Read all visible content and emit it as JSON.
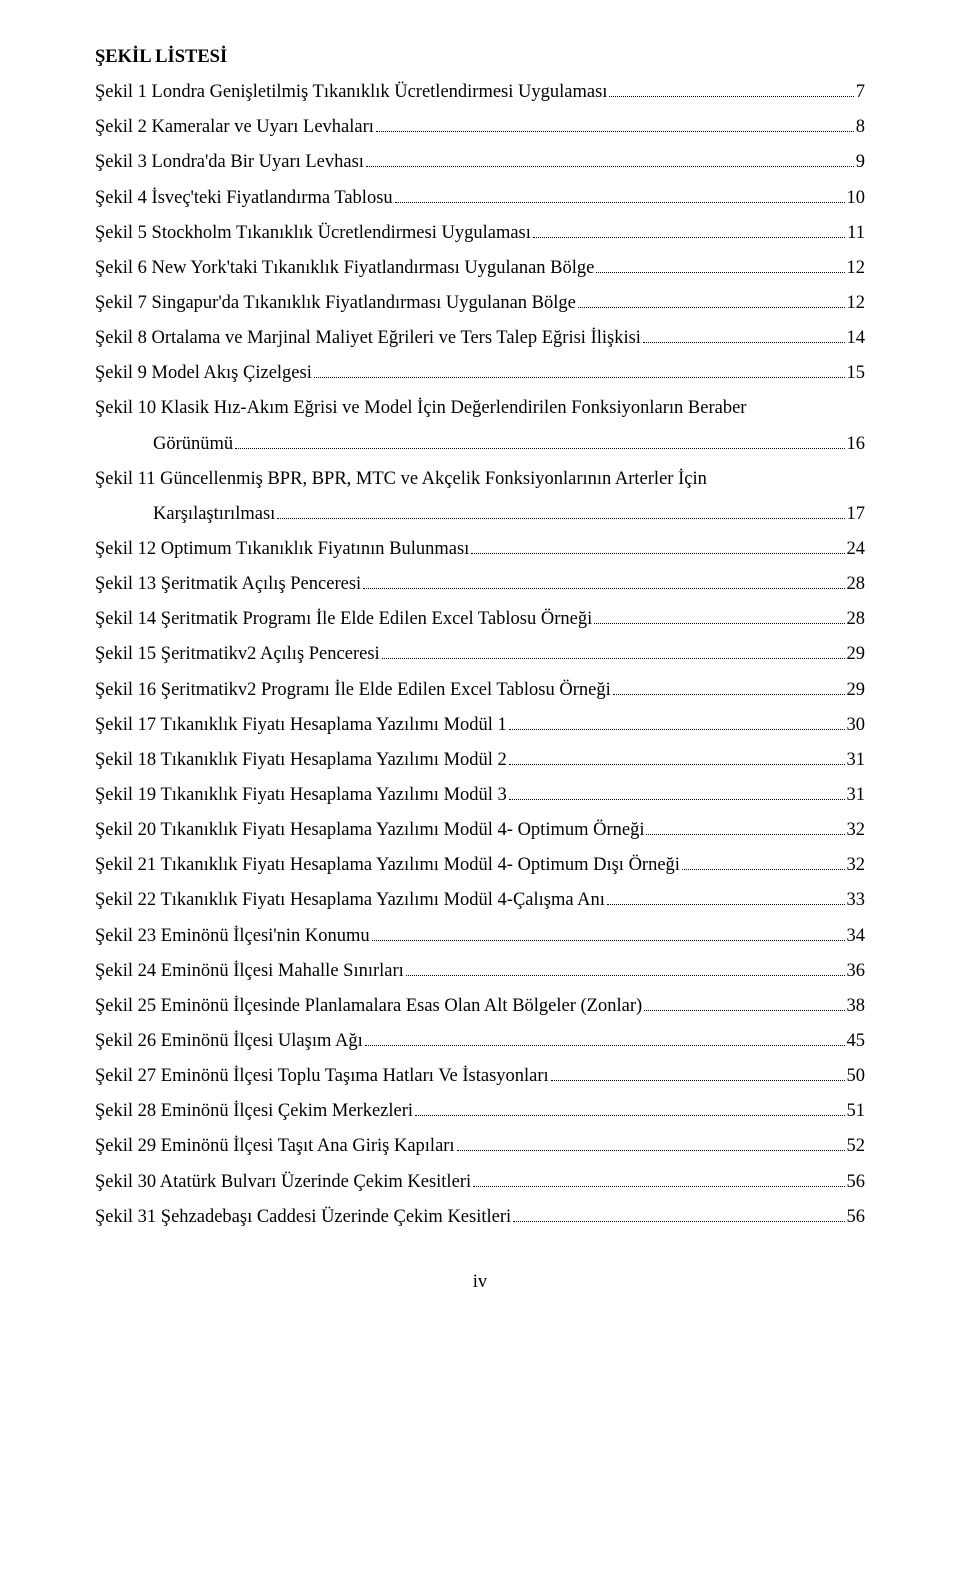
{
  "title": "ŞEKİL LİSTESİ",
  "entries": [
    {
      "text": "Şekil 1 Londra Genişletilmiş Tıkanıklık Ücretlendirmesi Uygulaması",
      "page": "7"
    },
    {
      "text": "Şekil 2 Kameralar ve Uyarı Levhaları",
      "page": "8"
    },
    {
      "text": "Şekil 3 Londra'da Bir Uyarı Levhası",
      "page": "9"
    },
    {
      "text": "Şekil 4 İsveç'teki Fiyatlandırma Tablosu",
      "page": "10"
    },
    {
      "text": "Şekil 5 Stockholm Tıkanıklık Ücretlendirmesi Uygulaması",
      "page": "11"
    },
    {
      "text": "Şekil 6 New York'taki Tıkanıklık Fiyatlandırması Uygulanan Bölge",
      "page": "12"
    },
    {
      "text": "Şekil 7 Singapur'da Tıkanıklık Fiyatlandırması Uygulanan Bölge",
      "page": "12"
    },
    {
      "text": "Şekil 8 Ortalama ve Marjinal Maliyet Eğrileri ve Ters Talep Eğrisi İlişkisi",
      "page": "14"
    },
    {
      "text": "Şekil 9 Model Akış Çizelgesi",
      "page": "15"
    },
    {
      "text_line1": "Şekil 10 Klasik Hız-Akım Eğrisi ve Model İçin Değerlendirilen Fonksiyonların Beraber",
      "text_line2": "Görünümü",
      "page": "16",
      "wrap": true
    },
    {
      "text_line1": "Şekil 11 Güncellenmiş BPR, BPR, MTC ve Akçelik Fonksiyonlarının Arterler İçin",
      "text_line2": "Karşılaştırılması",
      "page": "17",
      "wrap": true
    },
    {
      "text": "Şekil 12 Optimum Tıkanıklık Fiyatının Bulunması",
      "page": "24"
    },
    {
      "text": "Şekil 13 Şeritmatik Açılış Penceresi",
      "page": "28"
    },
    {
      "text": "Şekil 14 Şeritmatik Programı İle Elde Edilen Excel Tablosu Örneği",
      "page": "28"
    },
    {
      "text": "Şekil 15 Şeritmatikv2 Açılış Penceresi",
      "page": "29"
    },
    {
      "text": "Şekil 16 Şeritmatikv2 Programı İle Elde Edilen Excel Tablosu Örneği",
      "page": "29"
    },
    {
      "text": "Şekil 17 Tıkanıklık Fiyatı Hesaplama Yazılımı Modül 1",
      "page": "30"
    },
    {
      "text": "Şekil 18 Tıkanıklık Fiyatı Hesaplama Yazılımı Modül 2",
      "page": "31"
    },
    {
      "text": "Şekil 19 Tıkanıklık Fiyatı Hesaplama Yazılımı Modül 3",
      "page": "31"
    },
    {
      "text": "Şekil 20 Tıkanıklık Fiyatı Hesaplama Yazılımı Modül 4- Optimum Örneği",
      "page": "32"
    },
    {
      "text": "Şekil 21 Tıkanıklık Fiyatı Hesaplama Yazılımı Modül 4- Optimum Dışı Örneği",
      "page": "32"
    },
    {
      "text": "Şekil 22 Tıkanıklık Fiyatı Hesaplama Yazılımı Modül 4-Çalışma Anı",
      "page": "33"
    },
    {
      "text": "Şekil 23 Eminönü İlçesi'nin Konumu",
      "page": "34"
    },
    {
      "text": "Şekil 24 Eminönü İlçesi Mahalle Sınırları",
      "page": "36"
    },
    {
      "text": "Şekil 25 Eminönü İlçesinde Planlamalara Esas Olan Alt Bölgeler (Zonlar)",
      "page": "38"
    },
    {
      "text": "Şekil 26 Eminönü İlçesi Ulaşım Ağı",
      "page": "45"
    },
    {
      "text": "Şekil 27 Eminönü İlçesi Toplu Taşıma Hatları Ve İstasyonları",
      "page": "50"
    },
    {
      "text": "Şekil 28 Eminönü İlçesi Çekim Merkezleri",
      "page": "51"
    },
    {
      "text": "Şekil 29 Eminönü İlçesi Taşıt Ana Giriş Kapıları",
      "page": "52"
    },
    {
      "text": "Şekil 30 Atatürk Bulvarı Üzerinde Çekim Kesitleri",
      "page": "56"
    },
    {
      "text": "Şekil 31 Şehzadebaşı Caddesi Üzerinde Çekim Kesitleri",
      "page": "56"
    }
  ],
  "page_number": "iv"
}
